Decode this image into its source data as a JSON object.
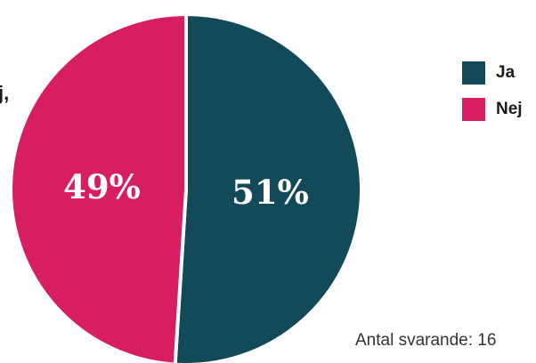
{
  "chart_data": {
    "type": "pie",
    "title": "",
    "slices": [
      {
        "label": "Ja",
        "value": 51,
        "value_label": "51%",
        "color": "#124a5a"
      },
      {
        "label": "Nej",
        "value": 49,
        "value_label": "49%",
        "color": "#d81e62"
      }
    ],
    "legend_placement": "top-right"
  },
  "clipped_text": "j,",
  "footnote": "Antal svarande: 16"
}
